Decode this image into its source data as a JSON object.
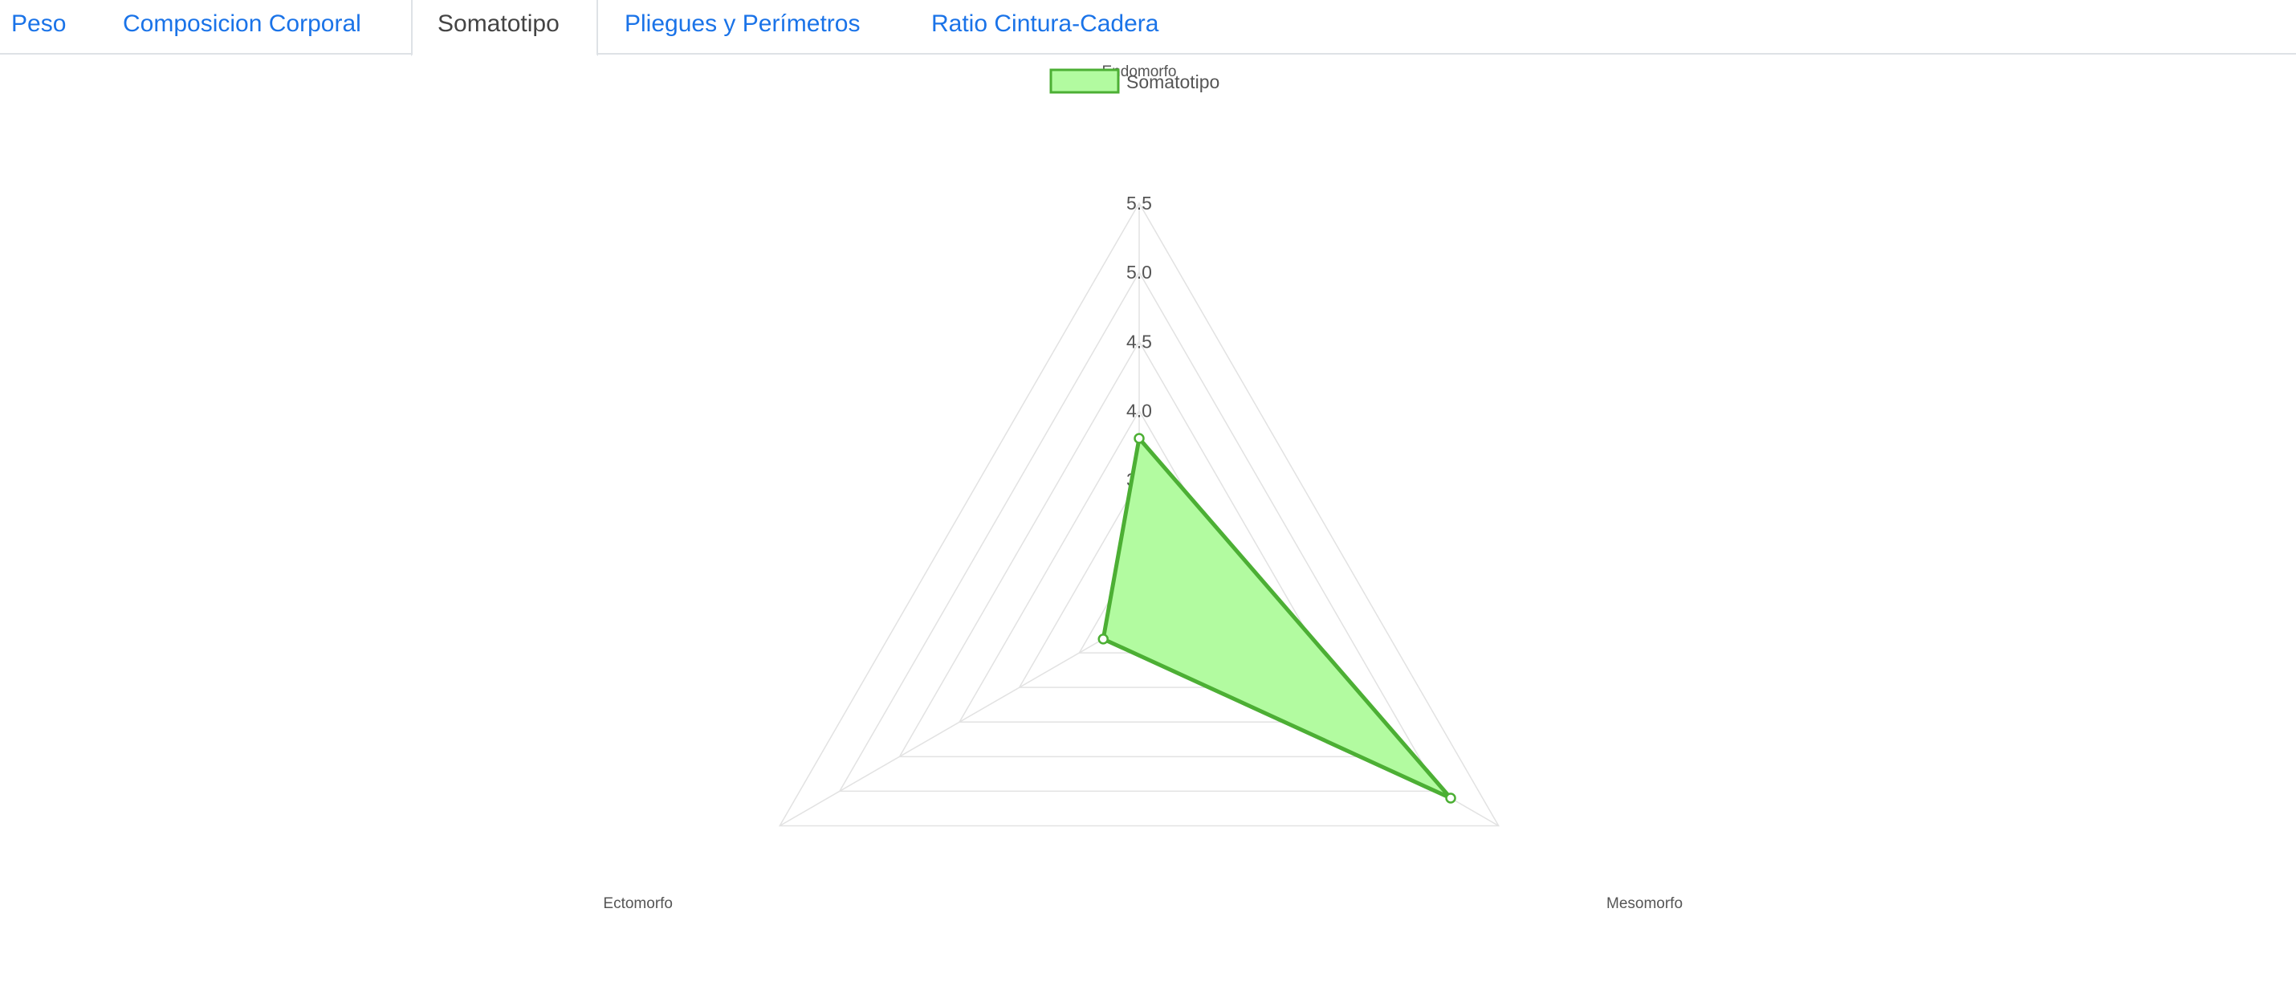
{
  "tabs": [
    {
      "label": "Peso"
    },
    {
      "label": "Composicion Corporal"
    },
    {
      "label": "Somatotipo",
      "active": true
    },
    {
      "label": "Pliegues y Perímetros"
    },
    {
      "label": "Ratio Cintura-Cadera"
    }
  ],
  "colors": {
    "link": "#1a73e8",
    "series_fill": "#b2fba0",
    "series_stroke": "#4caf34",
    "grid": "#e2e2e2"
  },
  "chart_data": {
    "type": "radar",
    "axes": [
      "Endomorfo",
      "Mesomorfo",
      "Ectomorfo"
    ],
    "series": [
      {
        "name": "Somatotipo",
        "values": [
          3.8,
          5.1,
          2.8
        ]
      }
    ],
    "r_range": [
      2.5,
      5.5
    ],
    "ticks": [
      "3.0",
      "3.5",
      "4.0",
      "4.5",
      "5.0",
      "5.5"
    ],
    "grid": true,
    "legend": "top"
  }
}
